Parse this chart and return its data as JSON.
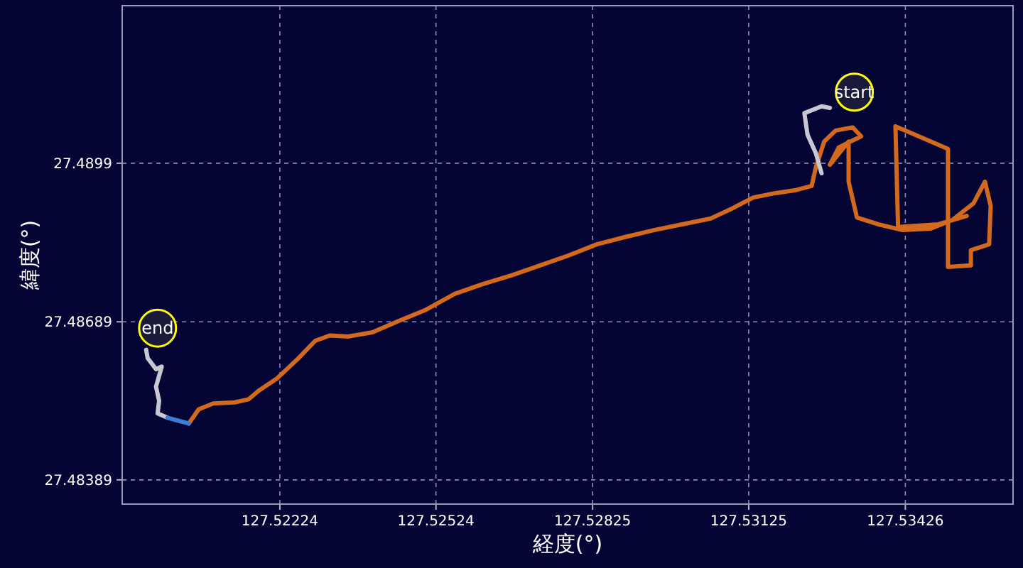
{
  "chart_data": {
    "type": "line",
    "xlabel": "経度(°)",
    "ylabel": "緯度(°)",
    "xlim": [
      127.51921,
      127.53633
    ],
    "ylim": [
      27.48343,
      27.49289
    ],
    "xticks": [
      127.52224,
      127.52524,
      127.52825,
      127.53125,
      127.53426
    ],
    "yticks": [
      27.48389,
      27.48689,
      27.4899
    ],
    "grid": true,
    "annotations": [
      {
        "text": "start",
        "x": 127.53328,
        "y": 27.49125
      },
      {
        "text": "end",
        "x": 127.51989,
        "y": 27.48677
      }
    ],
    "series": [
      {
        "color": "#d2691e",
        "x": [
          127.52049,
          127.52068,
          127.52096,
          127.52137,
          127.52164,
          127.52183,
          127.52219,
          127.5226,
          127.52292,
          127.5232,
          127.52355,
          127.52402,
          127.52451,
          127.52505,
          127.5256,
          127.52615,
          127.52669,
          127.52724,
          127.52779,
          127.52833,
          127.52888,
          127.52943,
          127.52997,
          127.53052,
          127.53093,
          127.53134,
          127.53175,
          127.53216,
          127.53246,
          127.53254,
          127.5327,
          127.53292,
          127.53325,
          127.53341,
          127.53298,
          127.53281,
          127.53317,
          127.53317,
          127.53333,
          127.53374,
          127.53421,
          127.53475,
          127.53516,
          127.53557,
          127.53579,
          127.5359,
          127.53587,
          127.53552,
          127.53552,
          127.53508,
          127.53508,
          127.53407,
          127.53412,
          127.53489,
          127.53544
        ],
        "values": [
          27.48496,
          27.48523,
          27.48534,
          27.48536,
          27.48542,
          27.48558,
          27.48582,
          27.4862,
          27.48653,
          27.48663,
          27.48661,
          27.48669,
          27.4869,
          27.48712,
          27.48742,
          27.48761,
          27.48777,
          27.48796,
          27.48815,
          27.48836,
          27.4885,
          27.48863,
          27.48874,
          27.48885,
          27.48904,
          27.48925,
          27.48933,
          27.48939,
          27.48947,
          27.48982,
          27.49031,
          27.49052,
          27.49058,
          27.49041,
          27.4902,
          27.48987,
          27.49031,
          27.48955,
          27.48887,
          27.48874,
          27.48863,
          27.48866,
          27.48882,
          27.48914,
          27.48955,
          27.48909,
          27.48836,
          27.48825,
          27.48796,
          27.48793,
          27.49017,
          27.4906,
          27.48869,
          27.48874,
          27.4889
        ]
      },
      {
        "color": "#c8c8d2",
        "x": [
          127.53281,
          127.53265,
          127.53232,
          127.53238,
          127.53254,
          127.53265
        ],
        "values": [
          27.49095,
          27.49098,
          27.49085,
          27.49044,
          27.49009,
          27.48971
        ]
      },
      {
        "color": "#c8c8d2",
        "x": [
          127.51967,
          127.5197,
          127.51986,
          127.51997,
          127.51986,
          127.51992,
          127.51989,
          127.52008
        ],
        "values": [
          27.48636,
          27.4862,
          27.48599,
          27.48604,
          27.48566,
          27.48539,
          27.48515,
          27.48507
        ]
      },
      {
        "color": "#3a7fd5",
        "x": [
          127.52008,
          127.5203,
          127.52049
        ],
        "values": [
          27.48507,
          27.48501,
          27.48496
        ]
      }
    ]
  }
}
